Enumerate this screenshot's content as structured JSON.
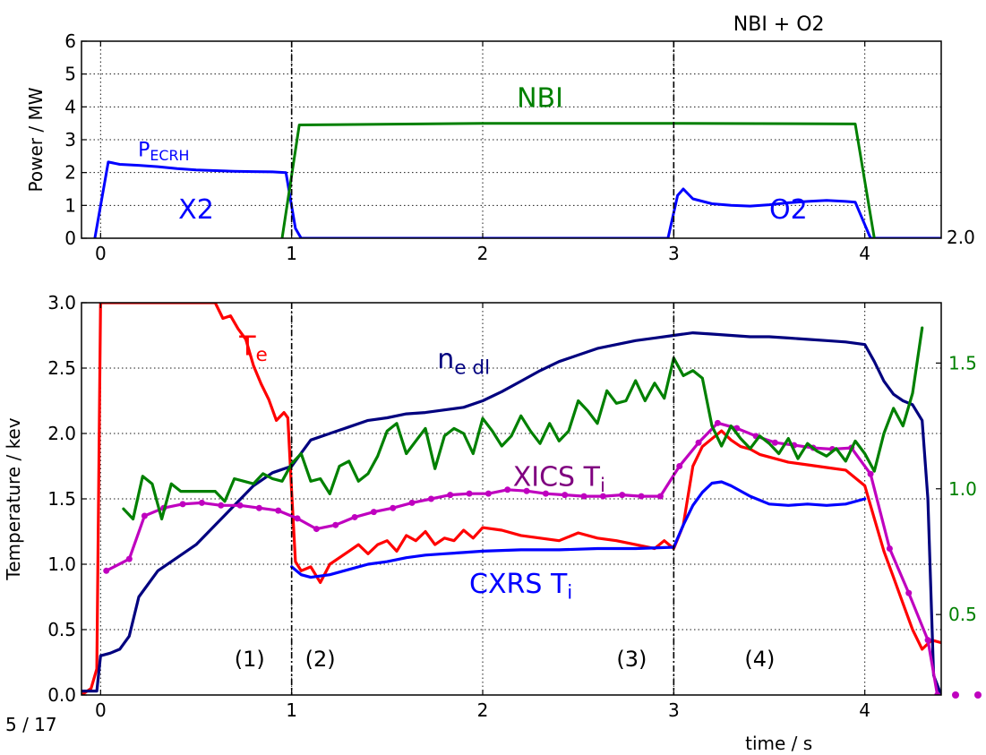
{
  "page_number": "5 / 17",
  "chart_data": [
    {
      "type": "line",
      "title": "NBI + O2",
      "ylabel": "Power / MW",
      "xlabel": "",
      "xlim": [
        -0.1,
        4.4
      ],
      "ylim": [
        0,
        6
      ],
      "xticks": [
        "0",
        "1",
        "2",
        "3",
        "4"
      ],
      "yticks": [
        "0",
        "1",
        "2",
        "3",
        "4",
        "5",
        "6"
      ],
      "right_tick_label": "2.0",
      "grid": true,
      "series": [
        {
          "name": "PECRH",
          "color": "#0000ff",
          "x": [
            -0.03,
            0.04,
            0.1,
            0.2,
            0.3,
            0.4,
            0.5,
            0.6,
            0.7,
            0.8,
            0.9,
            0.97,
            1.02,
            1.05,
            2.97,
            3.02,
            3.05,
            3.1,
            3.2,
            3.3,
            3.4,
            3.5,
            3.6,
            3.7,
            3.8,
            3.9,
            3.95,
            4.03,
            4.4
          ],
          "y": [
            0,
            2.32,
            2.25,
            2.22,
            2.18,
            2.12,
            2.08,
            2.06,
            2.04,
            2.03,
            2.02,
            2.0,
            0.3,
            0,
            0,
            1.3,
            1.5,
            1.2,
            1.05,
            1.0,
            0.98,
            1.02,
            1.08,
            1.12,
            1.15,
            1.12,
            1.1,
            0,
            0
          ]
        },
        {
          "name": "NBI",
          "color": "#008000",
          "x": [
            0.95,
            1.04,
            2.0,
            3.0,
            3.95,
            4.05
          ],
          "y": [
            0,
            3.45,
            3.5,
            3.5,
            3.48,
            0
          ]
        }
      ],
      "annotations": [
        {
          "text": "NBI",
          "x": 2.3,
          "y": 4.0,
          "color": "#008000"
        },
        {
          "text": "X2",
          "x": 0.5,
          "y": 0.6,
          "color": "#0000ff"
        },
        {
          "text": "O2",
          "x": 3.6,
          "y": 0.6,
          "color": "#0000ff"
        }
      ],
      "vlines": [
        1,
        3
      ]
    },
    {
      "type": "line",
      "title": "",
      "ylabel": "Temperature / kev",
      "xlabel": "time / s",
      "xlim": [
        -0.1,
        4.4
      ],
      "ylim": [
        0,
        3.0
      ],
      "xticks": [
        "0",
        "1",
        "2",
        "3",
        "4"
      ],
      "yticks": [
        "0.0",
        "0.5",
        "1.0",
        "1.5",
        "2.0",
        "2.5",
        "3.0"
      ],
      "right_yticks": [
        "0.5",
        "1.0",
        "1.5"
      ],
      "right_ylim": [
        0.18,
        1.74
      ],
      "grid": true,
      "series": [
        {
          "name": "Te",
          "axis": "left",
          "color": "#ff0000",
          "x": [
            -0.1,
            -0.05,
            -0.02,
            0.0,
            0.6,
            0.64,
            0.68,
            0.72,
            0.76,
            0.8,
            0.84,
            0.88,
            0.92,
            0.96,
            0.98,
            1.0,
            1.02,
            1.05,
            1.1,
            1.15,
            1.2,
            1.25,
            1.3,
            1.35,
            1.4,
            1.45,
            1.5,
            1.55,
            1.6,
            1.65,
            1.7,
            1.75,
            1.8,
            1.85,
            1.9,
            1.95,
            2.0,
            2.1,
            2.2,
            2.3,
            2.4,
            2.5,
            2.6,
            2.7,
            2.8,
            2.9,
            2.95,
            3.0,
            3.05,
            3.1,
            3.15,
            3.2,
            3.25,
            3.3,
            3.35,
            3.4,
            3.45,
            3.5,
            3.55,
            3.6,
            3.7,
            3.8,
            3.9,
            4.0,
            4.05,
            4.1,
            4.15,
            4.2,
            4.25,
            4.3,
            4.35,
            4.4
          ],
          "y": [
            0.0,
            0.05,
            0.2,
            3.0,
            3.0,
            2.88,
            2.9,
            2.8,
            2.72,
            2.52,
            2.38,
            2.26,
            2.1,
            2.16,
            2.12,
            1.55,
            1.02,
            0.95,
            0.98,
            0.86,
            1.0,
            1.05,
            1.1,
            1.15,
            1.08,
            1.15,
            1.18,
            1.1,
            1.22,
            1.18,
            1.25,
            1.15,
            1.2,
            1.18,
            1.26,
            1.2,
            1.28,
            1.26,
            1.22,
            1.2,
            1.18,
            1.24,
            1.2,
            1.18,
            1.15,
            1.12,
            1.18,
            1.12,
            1.3,
            1.75,
            1.9,
            1.96,
            2.02,
            1.95,
            1.9,
            1.88,
            1.84,
            1.82,
            1.8,
            1.78,
            1.76,
            1.74,
            1.72,
            1.6,
            1.35,
            1.1,
            0.9,
            0.7,
            0.5,
            0.35,
            0.42,
            0.4
          ]
        },
        {
          "name": "ne dl",
          "axis": "left",
          "color": "#00007f",
          "x": [
            -0.1,
            -0.02,
            0.0,
            0.05,
            0.1,
            0.15,
            0.2,
            0.3,
            0.4,
            0.5,
            0.6,
            0.7,
            0.8,
            0.9,
            1.0,
            1.05,
            1.1,
            1.2,
            1.3,
            1.4,
            1.5,
            1.6,
            1.7,
            1.8,
            1.9,
            2.0,
            2.1,
            2.2,
            2.3,
            2.4,
            2.5,
            2.6,
            2.7,
            2.8,
            2.9,
            3.0,
            3.1,
            3.2,
            3.3,
            3.4,
            3.5,
            3.6,
            3.7,
            3.8,
            3.9,
            4.0,
            4.05,
            4.1,
            4.15,
            4.2,
            4.25,
            4.3,
            4.33,
            4.36,
            4.4
          ],
          "y": [
            0.03,
            0.03,
            0.3,
            0.32,
            0.35,
            0.45,
            0.75,
            0.95,
            1.05,
            1.15,
            1.3,
            1.45,
            1.6,
            1.7,
            1.75,
            1.85,
            1.95,
            2.0,
            2.05,
            2.1,
            2.12,
            2.15,
            2.16,
            2.18,
            2.2,
            2.25,
            2.32,
            2.4,
            2.48,
            2.55,
            2.6,
            2.65,
            2.68,
            2.71,
            2.73,
            2.75,
            2.77,
            2.76,
            2.75,
            2.74,
            2.74,
            2.73,
            2.72,
            2.71,
            2.7,
            2.68,
            2.55,
            2.4,
            2.3,
            2.25,
            2.22,
            2.1,
            1.5,
            0.15,
            0.0
          ]
        },
        {
          "name": "CXRS Ti",
          "axis": "left",
          "color": "#0000ff",
          "x": [
            1.0,
            1.05,
            1.1,
            1.2,
            1.3,
            1.4,
            1.5,
            1.6,
            1.7,
            1.8,
            1.9,
            2.0,
            2.2,
            2.4,
            2.6,
            2.8,
            3.0,
            3.05,
            3.1,
            3.15,
            3.2,
            3.25,
            3.3,
            3.4,
            3.5,
            3.6,
            3.7,
            3.8,
            3.9,
            4.0
          ],
          "y": [
            0.98,
            0.92,
            0.9,
            0.92,
            0.96,
            1.0,
            1.02,
            1.05,
            1.07,
            1.08,
            1.09,
            1.1,
            1.11,
            1.11,
            1.12,
            1.12,
            1.13,
            1.3,
            1.45,
            1.55,
            1.62,
            1.63,
            1.6,
            1.52,
            1.46,
            1.45,
            1.46,
            1.45,
            1.46,
            1.5
          ]
        },
        {
          "name": "XICS Ti",
          "axis": "left",
          "color": "#bf00bf",
          "x": [
            0.03,
            0.15,
            0.23,
            0.33,
            0.43,
            0.53,
            0.63,
            0.73,
            0.83,
            0.93,
            1.03,
            1.13,
            1.23,
            1.33,
            1.43,
            1.53,
            1.63,
            1.73,
            1.83,
            1.93,
            2.03,
            2.13,
            2.23,
            2.33,
            2.43,
            2.53,
            2.63,
            2.73,
            2.83,
            2.93,
            3.03,
            3.13,
            3.23,
            3.33,
            3.43,
            3.53,
            3.63,
            3.73,
            3.83,
            3.93,
            4.03,
            4.13,
            4.23,
            4.33,
            4.38
          ],
          "y": [
            0.95,
            1.04,
            1.37,
            1.43,
            1.46,
            1.47,
            1.45,
            1.45,
            1.43,
            1.41,
            1.35,
            1.27,
            1.3,
            1.36,
            1.4,
            1.43,
            1.47,
            1.5,
            1.53,
            1.54,
            1.54,
            1.57,
            1.56,
            1.54,
            1.53,
            1.52,
            1.52,
            1.53,
            1.52,
            1.52,
            1.75,
            1.93,
            2.08,
            2.04,
            1.98,
            1.93,
            1.91,
            1.89,
            1.88,
            1.89,
            1.69,
            1.12,
            0.78,
            0.42,
            0.0
          ]
        },
        {
          "name": "",
          "axis": "right",
          "color": "#008000",
          "x": [
            0.12,
            0.17,
            0.22,
            0.27,
            0.32,
            0.37,
            0.42,
            0.5,
            0.6,
            0.65,
            0.7,
            0.75,
            0.8,
            0.85,
            0.9,
            0.95,
            1.0,
            1.05,
            1.1,
            1.15,
            1.2,
            1.25,
            1.3,
            1.35,
            1.4,
            1.45,
            1.5,
            1.55,
            1.6,
            1.65,
            1.7,
            1.75,
            1.8,
            1.85,
            1.9,
            1.95,
            2.0,
            2.05,
            2.1,
            2.15,
            2.2,
            2.25,
            2.3,
            2.35,
            2.4,
            2.45,
            2.5,
            2.55,
            2.6,
            2.65,
            2.7,
            2.75,
            2.8,
            2.85,
            2.9,
            2.95,
            3.0,
            3.05,
            3.1,
            3.15,
            3.2,
            3.25,
            3.3,
            3.35,
            3.4,
            3.45,
            3.5,
            3.55,
            3.6,
            3.65,
            3.7,
            3.75,
            3.8,
            3.85,
            3.9,
            3.95,
            4.0,
            4.05,
            4.1,
            4.15,
            4.2,
            4.25,
            4.3
          ],
          "y": [
            0.92,
            0.88,
            1.05,
            1.02,
            0.88,
            1.02,
            0.99,
            0.99,
            0.99,
            0.95,
            1.04,
            1.03,
            1.02,
            1.06,
            1.04,
            1.03,
            1.1,
            1.14,
            1.03,
            1.04,
            0.98,
            1.09,
            1.11,
            1.03,
            1.06,
            1.13,
            1.23,
            1.26,
            1.14,
            1.19,
            1.24,
            1.08,
            1.21,
            1.24,
            1.22,
            1.14,
            1.28,
            1.23,
            1.17,
            1.21,
            1.29,
            1.23,
            1.18,
            1.26,
            1.19,
            1.23,
            1.35,
            1.31,
            1.26,
            1.39,
            1.34,
            1.35,
            1.43,
            1.35,
            1.42,
            1.36,
            1.52,
            1.45,
            1.47,
            1.44,
            1.25,
            1.17,
            1.25,
            1.2,
            1.16,
            1.21,
            1.18,
            1.14,
            1.2,
            1.12,
            1.18,
            1.15,
            1.13,
            1.16,
            1.11,
            1.19,
            1.14,
            1.07,
            1.22,
            1.32,
            1.25,
            1.38,
            1.64
          ]
        }
      ],
      "annotations": [
        {
          "text": "Te",
          "x": 0.8,
          "y": 2.6,
          "color": "#ff0000"
        },
        {
          "text": "ne dl",
          "x": 1.9,
          "y": 2.5,
          "color": "#00007f"
        },
        {
          "text": "XICS Ti",
          "x": 2.4,
          "y": 1.6,
          "color": "#7f007f"
        },
        {
          "text": "CXRS Ti",
          "x": 2.2,
          "y": 0.78,
          "color": "#0000ff"
        },
        {
          "text": "(1)",
          "x": 0.78,
          "y": 0.22,
          "color": "#000000"
        },
        {
          "text": "(2)",
          "x": 1.15,
          "y": 0.22,
          "color": "#000000"
        },
        {
          "text": "(3)",
          "x": 2.78,
          "y": 0.22,
          "color": "#000000"
        },
        {
          "text": "(4)",
          "x": 3.45,
          "y": 0.22,
          "color": "#000000"
        }
      ],
      "vlines": [
        1,
        3
      ]
    }
  ]
}
